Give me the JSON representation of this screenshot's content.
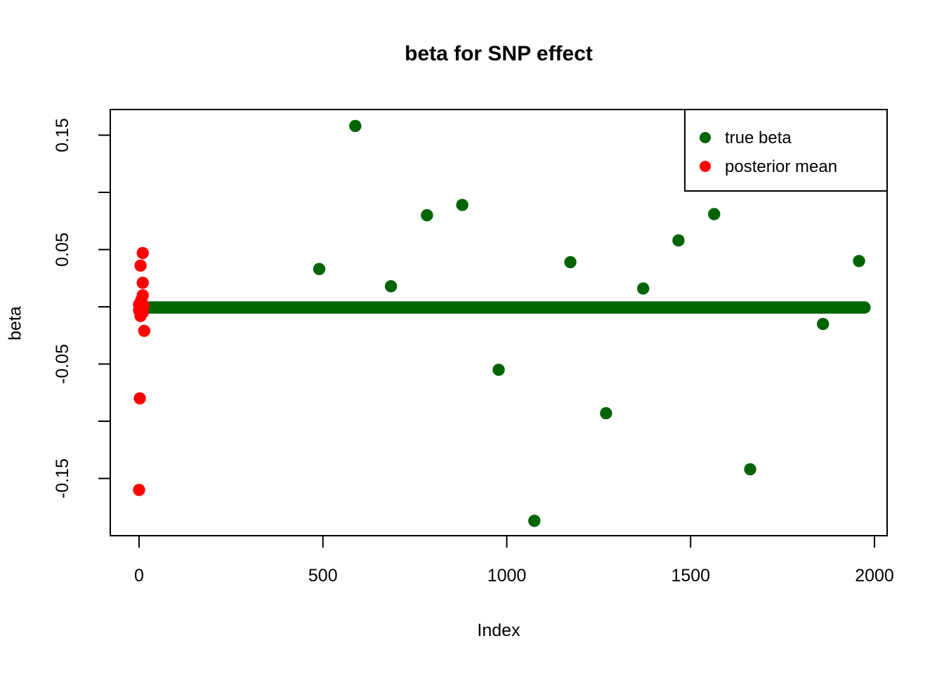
{
  "chart_data": {
    "type": "scatter",
    "title": "beta for SNP effect",
    "xlabel": "Index",
    "ylabel": "beta",
    "x_axis": {
      "range_shown": [
        -80,
        2035
      ],
      "ticks": [
        0,
        500,
        1000,
        1500,
        2000
      ],
      "tick_labels": [
        "0",
        "500",
        "1000",
        "1500",
        "2000"
      ]
    },
    "y_axis": {
      "range_shown": [
        -0.2,
        0.172
      ],
      "ticks": [
        -0.15,
        -0.1,
        -0.05,
        0,
        0.05,
        0.1,
        0.15
      ],
      "labeled_ticks": [
        -0.15,
        -0.05,
        0.05,
        0.15
      ],
      "labeled_tick_labels": [
        "-0.15",
        "-0.05",
        "0.05",
        "0.15"
      ]
    },
    "colors": {
      "true_beta": "#006400",
      "posterior_mean": "#ff0000",
      "axis": "#000000",
      "background": "#ffffff"
    },
    "zero_line": {
      "series": "true beta",
      "y": 0,
      "x_from": 4,
      "x_to": 1973,
      "color": "#006400"
    },
    "series": [
      {
        "name": "true beta",
        "color": "#006400",
        "points": [
          [
            490,
            0.033
          ],
          [
            588,
            0.158
          ],
          [
            685,
            0.018
          ],
          [
            783,
            0.08
          ],
          [
            879,
            0.089
          ],
          [
            978,
            -0.055
          ],
          [
            1075,
            -0.187
          ],
          [
            1173,
            0.039
          ],
          [
            1270,
            -0.093
          ],
          [
            1371,
            0.016
          ],
          [
            1467,
            0.058
          ],
          [
            1564,
            0.081
          ],
          [
            1662,
            -0.142
          ],
          [
            1860,
            -0.015
          ],
          [
            1958,
            0.04
          ]
        ]
      },
      {
        "name": "posterior mean",
        "color": "#ff0000",
        "points": [
          [
            10,
            0.047
          ],
          [
            4,
            0.036
          ],
          [
            10,
            0.021
          ],
          [
            10,
            0.01
          ],
          [
            6,
            0.006
          ],
          [
            0,
            0.002
          ],
          [
            12,
            0.001
          ],
          [
            0,
            -0.003
          ],
          [
            10,
            -0.005
          ],
          [
            4,
            -0.008
          ],
          [
            14,
            -0.021
          ],
          [
            2,
            -0.08
          ],
          [
            0,
            -0.16
          ]
        ]
      }
    ],
    "legend": {
      "position": "topright",
      "entries": [
        {
          "label": "true beta",
          "color": "#006400"
        },
        {
          "label": "posterior mean",
          "color": "#ff0000"
        }
      ]
    }
  }
}
